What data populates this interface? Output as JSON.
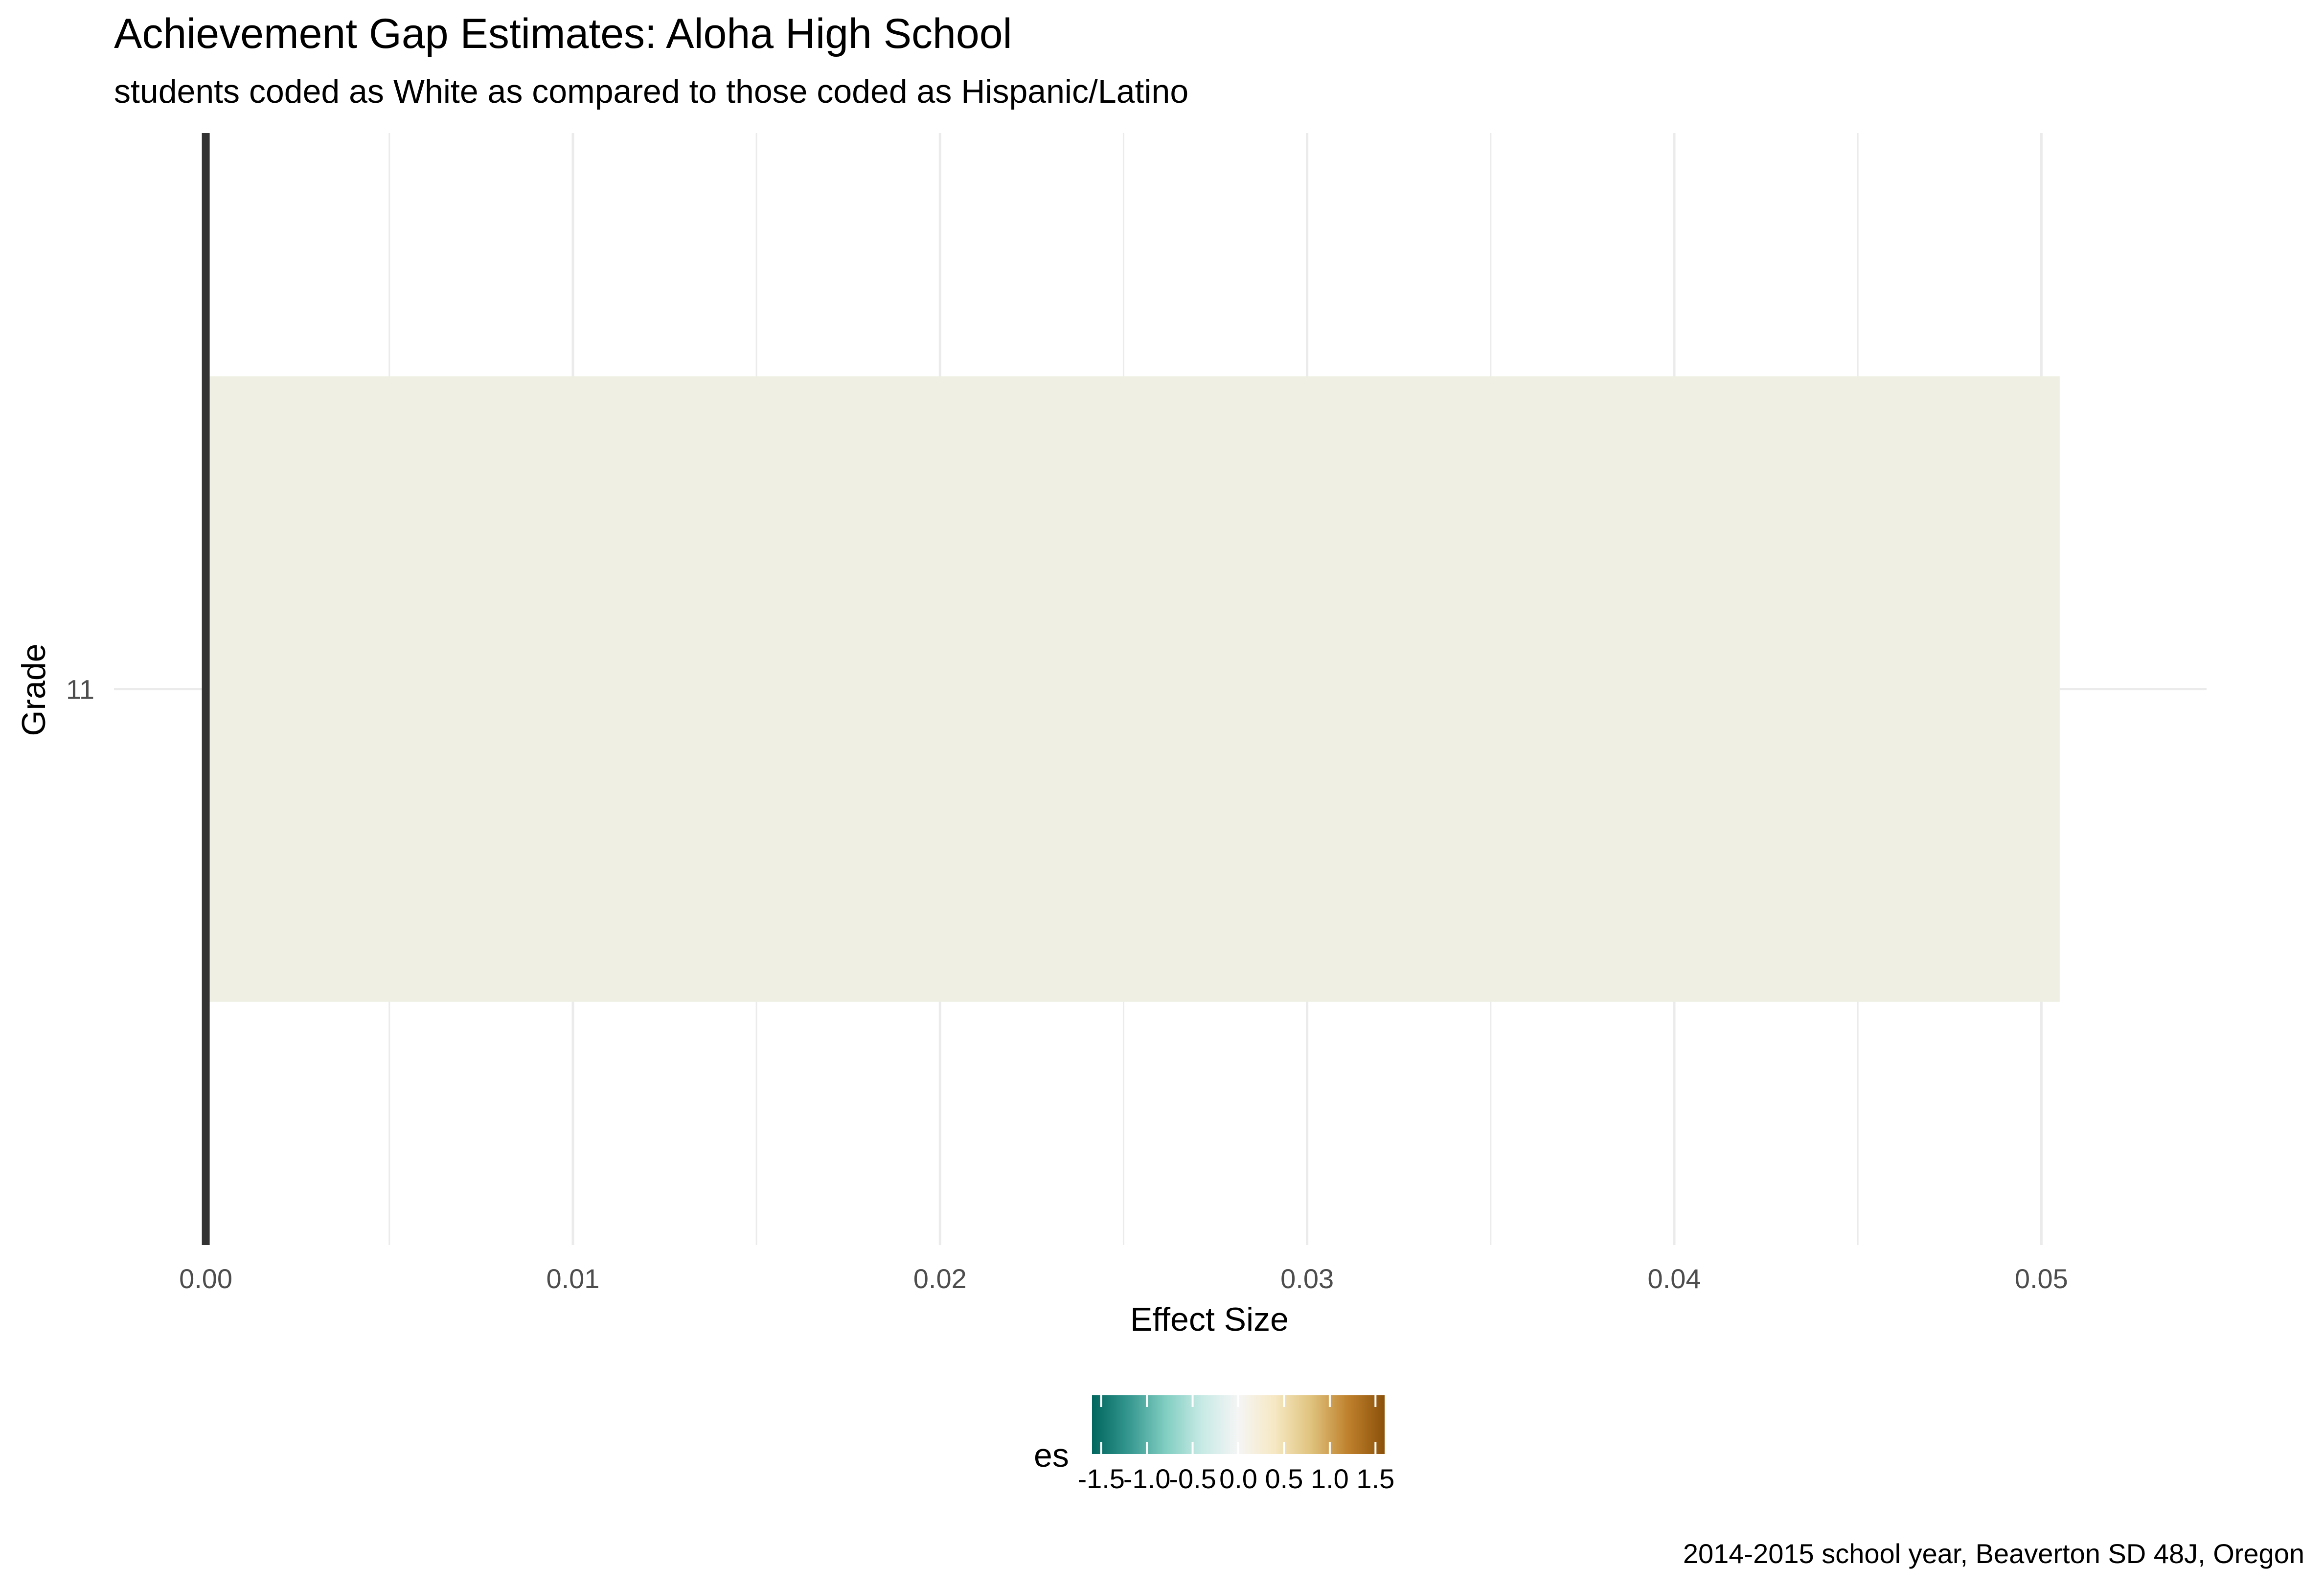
{
  "chart_data": {
    "type": "bar",
    "orientation": "horizontal",
    "title": "Achievement Gap Estimates: Aloha High School",
    "subtitle": "students coded as White as compared to those coded as Hispanic/Latino",
    "caption": "2014-2015 school year, Beaverton SD 48J, Oregon",
    "xlabel": "Effect Size",
    "ylabel": "Grade",
    "categories": [
      "11"
    ],
    "values": [
      0.0505
    ],
    "xlim": [
      -0.0025,
      0.0545
    ],
    "x_ticks": [
      0.0,
      0.01,
      0.02,
      0.03,
      0.04,
      0.05
    ],
    "x_tick_labels": [
      "0.00",
      "0.01",
      "0.02",
      "0.03",
      "0.04",
      "0.05"
    ],
    "grid": true,
    "reference_line_x": 0,
    "bar_color": "#EFF0E3",
    "legend": {
      "title": "es",
      "position": "bottom",
      "range": [
        -1.6,
        1.6
      ],
      "ticks": [
        -1.5,
        -1.0,
        -0.5,
        0.0,
        0.5,
        1.0,
        1.5
      ],
      "tick_labels": [
        "-1.5",
        "-1.0",
        "-0.5",
        "0.0",
        "0.5",
        "1.0",
        "1.5"
      ],
      "gradient_colors": [
        "#01665E",
        "#35978F",
        "#80CDC1",
        "#C7EAE5",
        "#F5F5F5",
        "#F6E8C3",
        "#DFC27D",
        "#BF812D",
        "#8C510A"
      ]
    }
  }
}
